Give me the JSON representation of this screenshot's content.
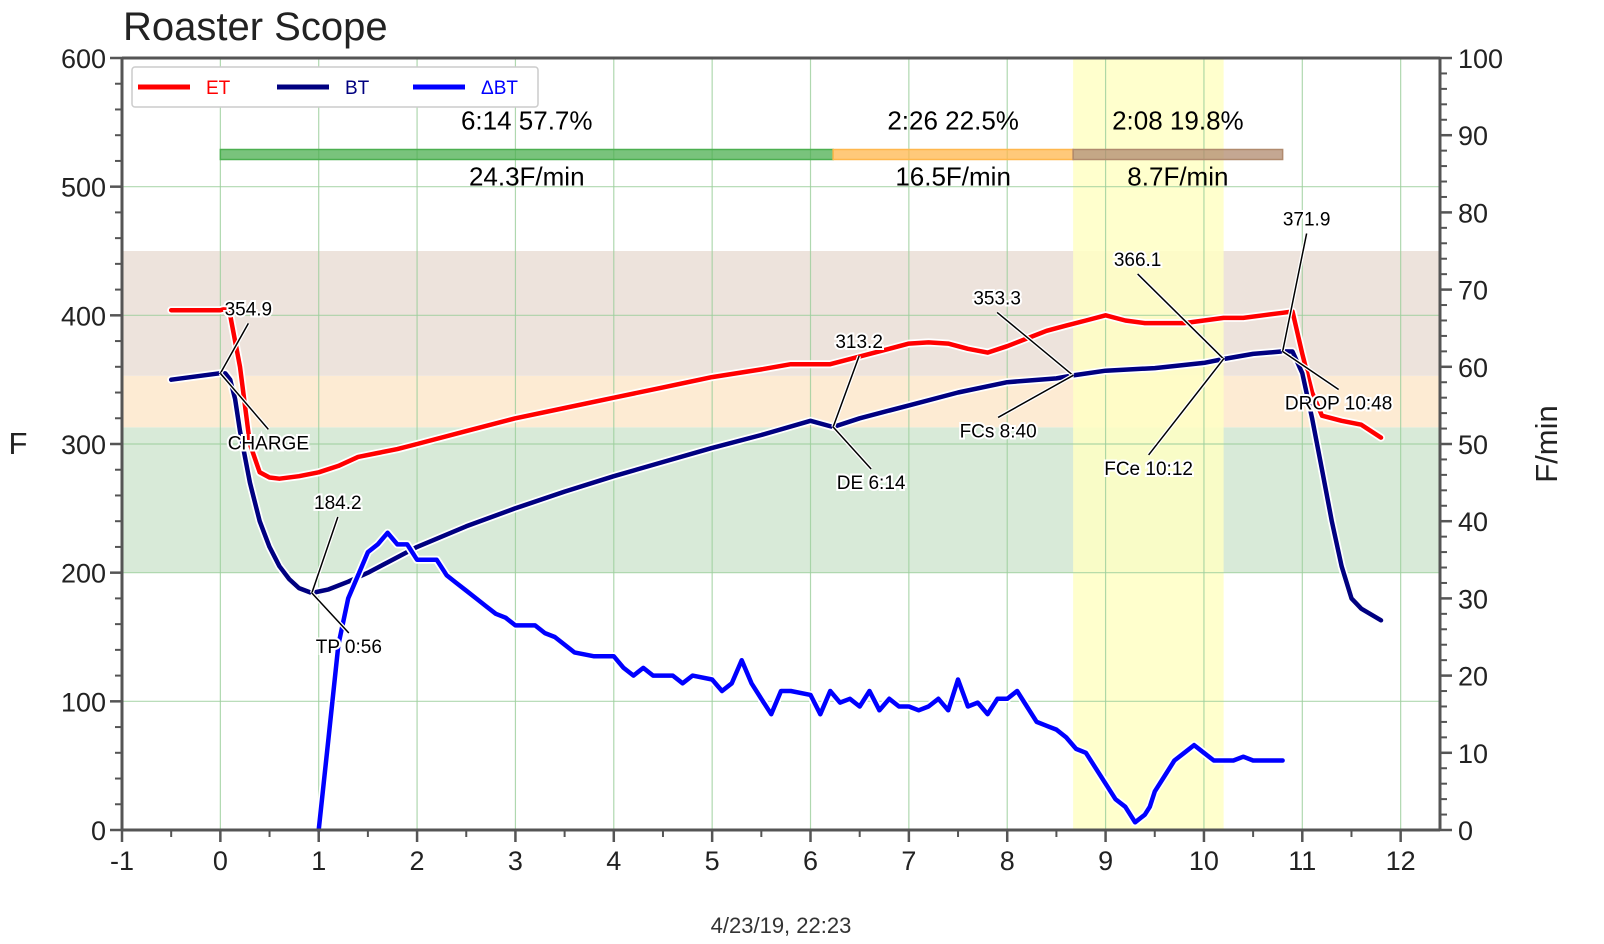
{
  "chart_data": {
    "type": "line",
    "title": "Roaster Scope",
    "footer": "4/23/19, 22:23",
    "xlabel": "",
    "ylabel_left": "F",
    "ylabel_right": "F/min",
    "xlim": [
      -1,
      12.4
    ],
    "ylim_left": [
      0,
      600
    ],
    "ylim_right": [
      0,
      100
    ],
    "x_ticks": [
      "-1",
      "0",
      "1",
      "2",
      "3",
      "4",
      "5",
      "6",
      "7",
      "8",
      "9",
      "10",
      "11",
      "12"
    ],
    "y_left_ticks": [
      "0",
      "100",
      "200",
      "300",
      "400",
      "500",
      "600"
    ],
    "y_right_ticks": [
      "0",
      "10",
      "20",
      "30",
      "40",
      "50",
      "60",
      "70",
      "80",
      "90",
      "100"
    ],
    "grid": true,
    "legend_position": "top-left",
    "colors": {
      "ET": "#ff0000",
      "BT": "#000080",
      "DeltaBT": "#0000ff",
      "phase_drying": "#4caf50",
      "phase_maillard": "#ffb74d",
      "phase_development": "#b08a6e",
      "band_green": "#d8ead8",
      "band_orange": "#fdebd3",
      "band_brown": "#ede3dc",
      "fc_highlight": "#ffffc4"
    },
    "background_bands": [
      {
        "name": "green",
        "from": 200,
        "to": 313
      },
      {
        "name": "orange",
        "from": 313,
        "to": 353
      },
      {
        "name": "brown",
        "from": 353,
        "to": 450
      }
    ],
    "highlight_x_range": [
      8.67,
      10.2
    ],
    "series": [
      {
        "name": "ET",
        "axis": "left",
        "x": [
          -0.5,
          0,
          0.05,
          0.1,
          0.2,
          0.3,
          0.4,
          0.5,
          0.6,
          0.8,
          1.0,
          1.2,
          1.4,
          1.6,
          1.8,
          2.0,
          2.5,
          3.0,
          3.5,
          4.0,
          4.5,
          5.0,
          5.5,
          5.8,
          6.0,
          6.2,
          6.4,
          6.6,
          6.8,
          7.0,
          7.2,
          7.4,
          7.6,
          7.8,
          8.0,
          8.2,
          8.4,
          8.6,
          8.8,
          9.0,
          9.2,
          9.4,
          9.6,
          9.8,
          10.0,
          10.2,
          10.4,
          10.6,
          10.8,
          10.9,
          11.0,
          11.1,
          11.2,
          11.4,
          11.6,
          11.8
        ],
        "y": [
          404,
          404,
          405,
          400,
          360,
          300,
          278,
          274,
          273,
          275,
          278,
          283,
          290,
          293,
          296,
          300,
          310,
          320,
          328,
          336,
          344,
          352,
          358,
          362,
          362,
          362,
          366,
          370,
          374,
          378,
          379,
          378,
          374,
          371,
          376,
          382,
          388,
          392,
          396,
          400,
          396,
          394,
          394,
          394,
          396,
          398,
          398,
          400,
          402,
          403,
          370,
          340,
          322,
          318,
          315,
          305
        ]
      },
      {
        "name": "BT",
        "axis": "left",
        "x": [
          -0.5,
          0,
          0.05,
          0.1,
          0.15,
          0.2,
          0.3,
          0.4,
          0.5,
          0.6,
          0.7,
          0.8,
          0.93,
          1.1,
          1.3,
          1.5,
          1.7,
          2.0,
          2.5,
          3.0,
          3.5,
          4.0,
          4.5,
          5.0,
          5.5,
          6.0,
          6.23,
          6.5,
          7.0,
          7.5,
          8.0,
          8.5,
          8.67,
          9.0,
          9.5,
          10.0,
          10.2,
          10.5,
          10.8,
          10.9,
          11.0,
          11.1,
          11.2,
          11.3,
          11.4,
          11.5,
          11.6,
          11.8
        ],
        "y": [
          350,
          355,
          354.9,
          350,
          335,
          310,
          270,
          240,
          220,
          205,
          195,
          188,
          184.2,
          187,
          193,
          200,
          208,
          220,
          236,
          250,
          263,
          275,
          286,
          297,
          307,
          318,
          313.2,
          320,
          330,
          340,
          348,
          351,
          353.3,
          357,
          359,
          363,
          366.1,
          370,
          372,
          371.9,
          355,
          320,
          280,
          240,
          205,
          180,
          172,
          163
        ]
      },
      {
        "name": "ΔBT",
        "axis": "right",
        "x": [
          1.0,
          1.1,
          1.2,
          1.3,
          1.4,
          1.5,
          1.6,
          1.7,
          1.8,
          1.9,
          2.0,
          2.1,
          2.2,
          2.3,
          2.4,
          2.5,
          2.6,
          2.7,
          2.8,
          2.9,
          3.0,
          3.2,
          3.3,
          3.4,
          3.6,
          3.8,
          4.0,
          4.1,
          4.2,
          4.3,
          4.4,
          4.6,
          4.7,
          4.8,
          5.0,
          5.1,
          5.2,
          5.3,
          5.4,
          5.5,
          5.6,
          5.7,
          5.8,
          6.0,
          6.1,
          6.2,
          6.3,
          6.4,
          6.5,
          6.6,
          6.7,
          6.8,
          6.9,
          7.0,
          7.1,
          7.2,
          7.3,
          7.4,
          7.5,
          7.6,
          7.7,
          7.8,
          7.9,
          8.0,
          8.1,
          8.2,
          8.3,
          8.4,
          8.5,
          8.6,
          8.7,
          8.8,
          8.9,
          9.0,
          9.1,
          9.2,
          9.3,
          9.4,
          9.45,
          9.5,
          9.6,
          9.7,
          9.8,
          9.9,
          10.0,
          10.1,
          10.2,
          10.3,
          10.4,
          10.5,
          10.6,
          10.7,
          10.8
        ],
        "y": [
          0,
          12,
          24,
          30,
          33,
          36,
          37,
          38.5,
          37,
          37,
          35,
          35,
          35,
          33,
          32,
          31,
          30,
          29,
          28,
          27.5,
          26.5,
          26.5,
          25.5,
          25,
          23,
          22.5,
          22.5,
          21,
          20,
          21,
          20,
          20,
          19,
          20,
          19.5,
          18,
          19,
          22,
          19,
          17,
          15,
          18,
          18,
          17.5,
          15,
          18,
          16.5,
          17,
          16,
          18,
          15.5,
          17,
          16,
          16,
          15.5,
          16,
          17,
          15.5,
          19.5,
          16,
          16.5,
          15,
          17,
          17,
          18,
          16,
          14,
          13.5,
          13,
          12,
          10.5,
          10,
          8,
          6,
          4,
          3,
          1,
          2,
          3,
          5,
          7,
          9,
          10,
          11,
          10,
          9,
          9,
          9,
          9.5,
          9,
          9,
          9,
          9
        ]
      }
    ],
    "phases": [
      {
        "label": "6:14  57.7%",
        "rate": "24.3F/min",
        "x_start": 0,
        "x_end": 6.23
      },
      {
        "label": "2:26  22.5%",
        "rate": "16.5F/min",
        "x_start": 6.23,
        "x_end": 8.67
      },
      {
        "label": "2:08  19.8%",
        "rate": "8.7F/min",
        "x_start": 8.67,
        "x_end": 10.8
      }
    ],
    "phase_bar_level": 525,
    "annotations": [
      {
        "event": "CHARGE",
        "time": 0,
        "temp": 354.9,
        "temp_label": "354.9",
        "event_label": "CHARGE"
      },
      {
        "event": "TP",
        "time": 0.93,
        "temp": 184.2,
        "temp_label": "184.2",
        "event_label": "TP 0:56"
      },
      {
        "event": "DE",
        "time": 6.23,
        "temp": 313.2,
        "temp_label": "313.2",
        "event_label": "DE 6:14"
      },
      {
        "event": "FCs",
        "time": 8.67,
        "temp": 353.3,
        "temp_label": "353.3",
        "event_label": "FCs 8:40"
      },
      {
        "event": "FCe",
        "time": 10.2,
        "temp": 366.1,
        "temp_label": "366.1",
        "event_label": "FCe 10:12"
      },
      {
        "event": "DROP",
        "time": 10.8,
        "temp": 371.9,
        "temp_label": "371.9",
        "event_label": "DROP 10:48"
      }
    ],
    "legend": [
      "ET",
      "BT",
      "ΔBT"
    ]
  }
}
